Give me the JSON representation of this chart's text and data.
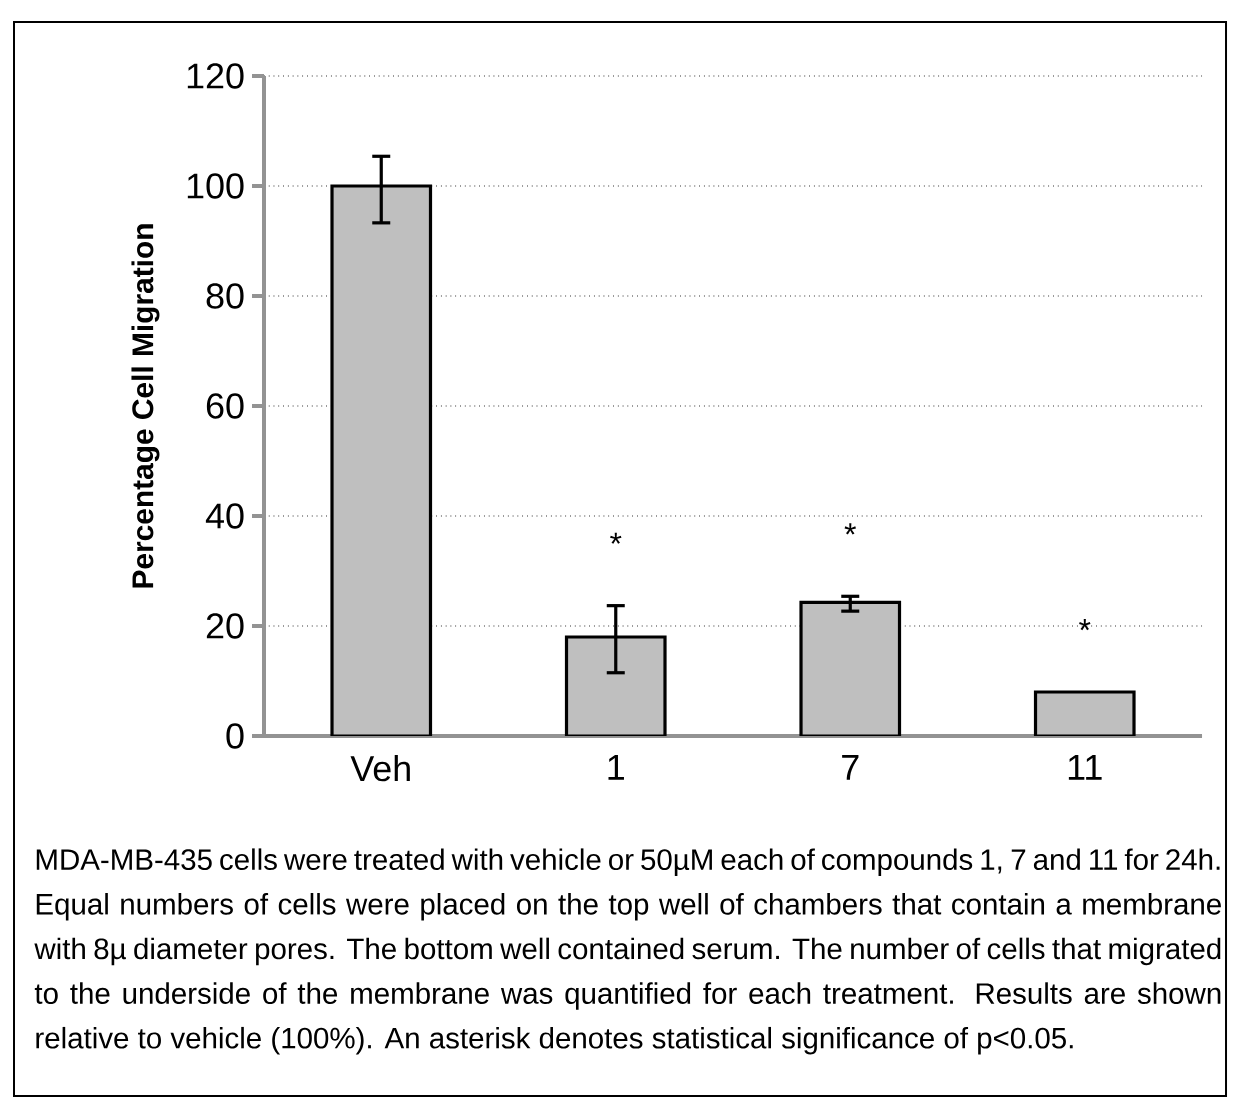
{
  "chart_data": {
    "type": "bar",
    "ylabel": "Percentage Cell Migration",
    "categories": [
      "Veh",
      "1",
      "7",
      "11"
    ],
    "values": [
      100,
      18,
      24.3,
      8
    ],
    "errors": [
      [
        93.3,
        105.4
      ],
      [
        11.5,
        23.7
      ],
      [
        22.7,
        25.4
      ],
      null
    ],
    "color": "#bfbfbf",
    "ylim": [
      0,
      120
    ],
    "yticks": [
      0,
      20,
      40,
      60,
      80,
      100,
      120
    ],
    "grid": "y",
    "annotations": [
      {
        "text": "*",
        "x": "1",
        "y": 23.7
      },
      {
        "text": "*",
        "x": "7",
        "y": 25.4
      },
      {
        "text": "*",
        "x": "11",
        "y": 8
      },
      "MDA-MB-435 cells were treated with vehicle or 50µM each of compounds 1, 7 and 11 for 24h. Equal numbers of cells were placed on the top well of chambers that contain a membrane with 8µ diameter pores. The bottom well contained serum. The number of cells that migrated to the underside of the membrane was quantified for each treatment. Results are shown relative to vehicle (100%). An asterisk denotes statistical significance of p<0.05."
    ]
  }
}
